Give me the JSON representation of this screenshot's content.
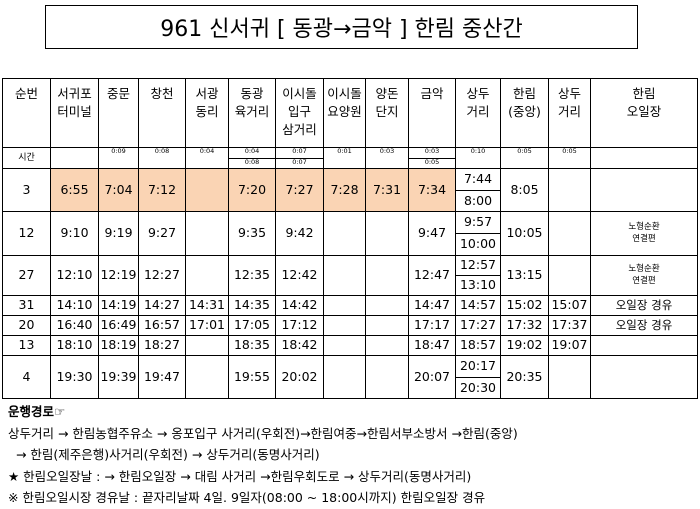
{
  "header": {
    "title": "961 신서귀  [ 동광→금악 ] 한림 중산간"
  },
  "table": {
    "columns": [
      [
        "순번"
      ],
      [
        "서귀포",
        "터미널"
      ],
      [
        "중문"
      ],
      [
        "창천"
      ],
      [
        "서광",
        "동리"
      ],
      [
        "동광",
        "육거리"
      ],
      [
        "이시돌",
        "입구",
        "삼거리"
      ],
      [
        "이시돌",
        "요양원"
      ],
      [
        "양돈",
        "단지"
      ],
      [
        "금악"
      ],
      [
        "상두",
        "거리"
      ],
      [
        "한림",
        "(중앙)"
      ],
      [
        "상두",
        "거리"
      ],
      [
        "한림",
        "오일장"
      ]
    ],
    "time_row": [
      "시간",
      null,
      "0:09",
      "0:08",
      "0:04",
      [
        "0:04",
        "0:08"
      ],
      [
        "0:07",
        "0:07"
      ],
      "0:01",
      "0:03",
      [
        "0:03",
        "0:05"
      ],
      "0:10",
      "0:05",
      "0:05",
      null
    ],
    "rows": [
      [
        "3",
        "6:55",
        "7:04",
        "7:12",
        null,
        "7:20",
        "7:27",
        "7:28",
        "7:31",
        "7:34",
        [
          "7:44",
          "8:00"
        ],
        "8:05",
        null,
        null
      ],
      [
        "12",
        "9:10",
        "9:19",
        "9:27",
        null,
        "9:35",
        "9:42",
        null,
        null,
        "9:47",
        [
          "9:57",
          "10:00"
        ],
        "10:05",
        null,
        [
          "노형순환",
          "연결편"
        ]
      ],
      [
        "27",
        "12:10",
        "12:19",
        "12:27",
        null,
        "12:35",
        "12:42",
        null,
        null,
        "12:47",
        [
          "12:57",
          "13:10"
        ],
        "13:15",
        null,
        [
          "노형순환",
          "연결편"
        ]
      ],
      [
        "31",
        "14:10",
        "14:19",
        "14:27",
        "14:31",
        "14:35",
        "14:42",
        null,
        null,
        "14:47",
        "14:57",
        "15:02",
        "15:07",
        "오일장 경유"
      ],
      [
        "20",
        "16:40",
        "16:49",
        "16:57",
        "17:01",
        "17:05",
        "17:12",
        null,
        null,
        "17:17",
        "17:27",
        "17:32",
        "17:37",
        "오일장 경유"
      ],
      [
        "13",
        "18:10",
        "18:19",
        "18:27",
        null,
        "18:35",
        "18:42",
        null,
        null,
        "18:47",
        "18:57",
        "19:02",
        "19:07",
        null
      ],
      [
        "4",
        "19:30",
        "19:39",
        "19:47",
        null,
        "19:55",
        "20:02",
        null,
        null,
        "20:07",
        [
          "20:17",
          "20:30"
        ],
        "20:35",
        null,
        null
      ]
    ]
  },
  "notes": {
    "heading": "운행경로☞",
    "lines": [
      "상두거리 → 한림농협주유소 → 옹포입구 사거리(우회전)→한림여중→한림서부소방서 →한림(중앙)",
      "  → 한림(제주은행)사거리(우회전) → 상두거리(동명사거리)",
      "★ 한림오일장날 : → 한림오일장 → 대림 사거리 →한림우회도로 → 상두거리(동명사거리)",
      "※ 한림오일시장 경유날 : 끝자리날짜 4일. 9일자(08:00 ~ 18:00시까지) 한림오일장 경유"
    ]
  }
}
